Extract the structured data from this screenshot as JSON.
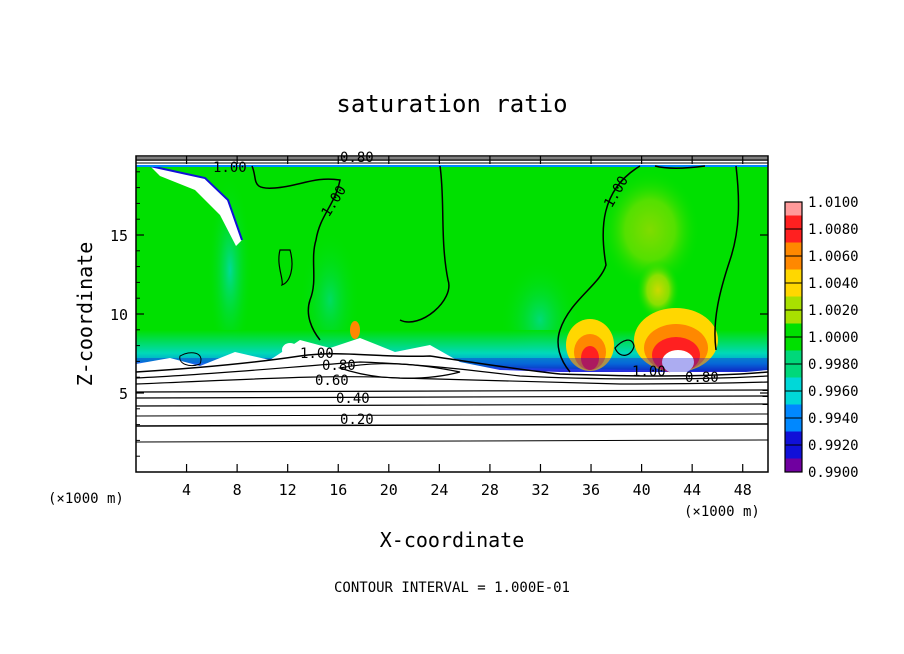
{
  "chart_data": {
    "type": "heatmap",
    "title": "saturation ratio",
    "xlabel": "X-coordinate",
    "ylabel": "Z-coordinate",
    "x_unit": "(×1000 m)",
    "z_unit": "(×1000 m)",
    "xlim": [
      0,
      50
    ],
    "ylim": [
      0,
      20
    ],
    "x_ticks": [
      4,
      8,
      12,
      16,
      20,
      24,
      28,
      32,
      36,
      40,
      44,
      48
    ],
    "y_ticks": [
      5,
      10,
      15
    ],
    "colorbar": {
      "levels": [
        "1.0100",
        "1.0080",
        "1.0060",
        "1.0040",
        "1.0020",
        "1.0000",
        "0.9980",
        "0.9960",
        "0.9940",
        "0.9920",
        "0.9900"
      ],
      "colors": [
        "#ff9a9a",
        "#ff2020",
        "#ff8800",
        "#ffd700",
        "#a8e000",
        "#00e000",
        "#00d87a",
        "#00d8d8",
        "#0088ff",
        "#1010d8",
        "#7000a0"
      ]
    },
    "contour_labels": [
      "1.00",
      "1.00",
      "1.00",
      "1.00",
      "1.00",
      "0.80",
      "0.80",
      "0.80",
      "0.60",
      "0.40",
      "0.20"
    ],
    "contour_interval": "CONTOUR INTERVAL = 1.000E-01"
  }
}
